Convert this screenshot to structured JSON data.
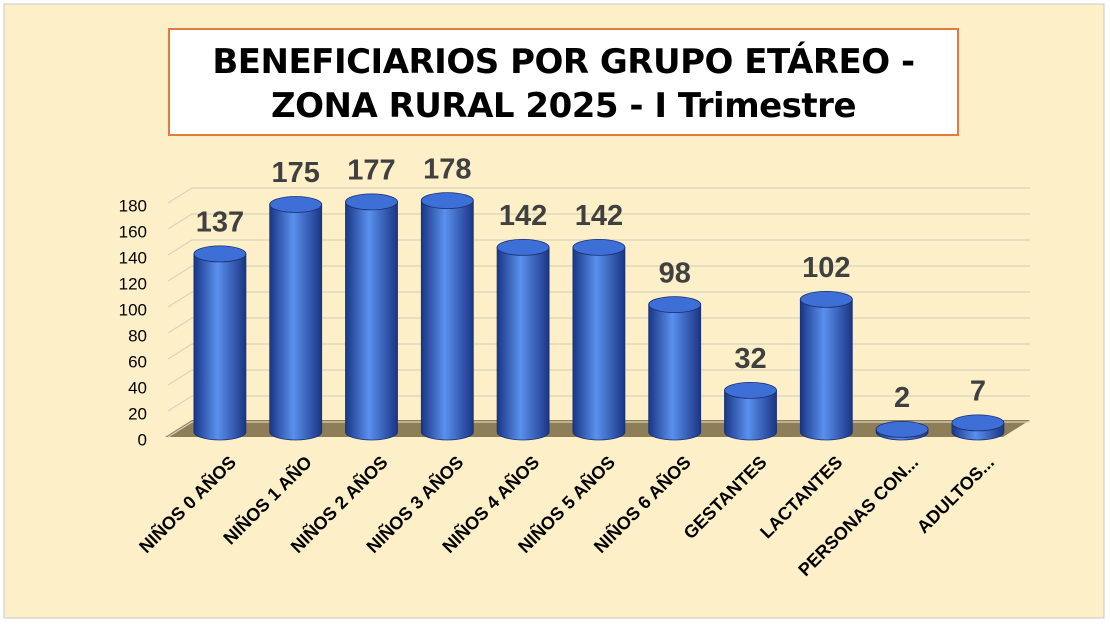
{
  "chart_data": {
    "type": "bar",
    "title": "BENEFICIARIOS POR GRUPO ETÁREO - ZONA RURAL 2025 - I Trimestre",
    "categories": [
      "NIÑOS 0 AÑOS",
      "NIÑOS 1 AÑO",
      "NIÑOS 2 AÑOS",
      "NIÑOS 3 AÑOS",
      "NIÑOS 4 AÑOS",
      "NIÑOS 5 AÑOS",
      "NIÑOS 6 AÑOS",
      "GESTANTES",
      "LACTANTES",
      "PERSONAS CON...",
      "ADULTOS..."
    ],
    "values": [
      137,
      175,
      177,
      178,
      142,
      142,
      98,
      32,
      102,
      2,
      7
    ],
    "color": "#2f5fc4",
    "ylim": [
      0,
      180
    ],
    "yticks": [
      0,
      20,
      40,
      60,
      80,
      100,
      120,
      140,
      160,
      180
    ],
    "grid": true
  }
}
